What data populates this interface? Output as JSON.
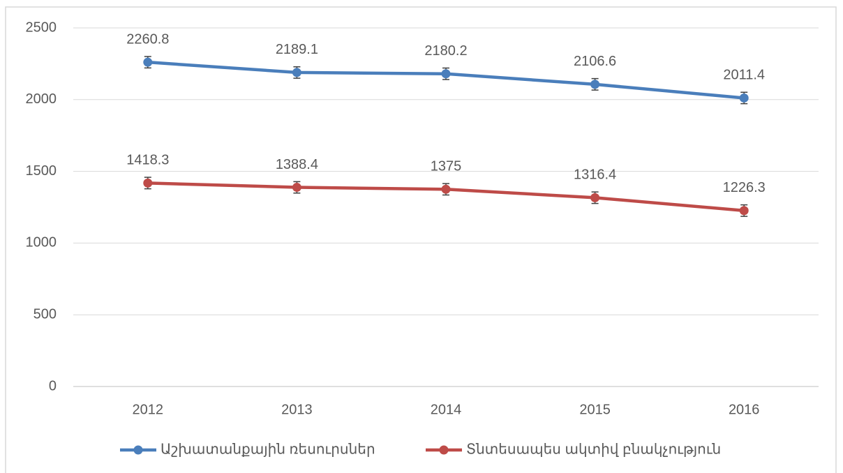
{
  "chart_data": {
    "type": "line",
    "categories": [
      "2012",
      "2013",
      "2014",
      "2015",
      "2016"
    ],
    "series": [
      {
        "name": "Աշխատանքային ռեսուրսներ",
        "color": "#4a7ebb",
        "values": [
          2260.8,
          2189.1,
          2180.2,
          2106.6,
          2011.4
        ],
        "errors": [
          40,
          40,
          40,
          40,
          40
        ]
      },
      {
        "name": "Տնտեսապես ակտիվ բնակչություն",
        "color": "#be4b48",
        "values": [
          1418.3,
          1388.4,
          1375,
          1316.4,
          1226.3
        ],
        "errors": [
          40,
          40,
          40,
          40,
          40
        ]
      }
    ],
    "ylim": [
      0,
      2500
    ],
    "yticks": [
      0,
      500,
      1000,
      1500,
      2000,
      2500
    ],
    "grid": true,
    "legend": "bottom"
  }
}
